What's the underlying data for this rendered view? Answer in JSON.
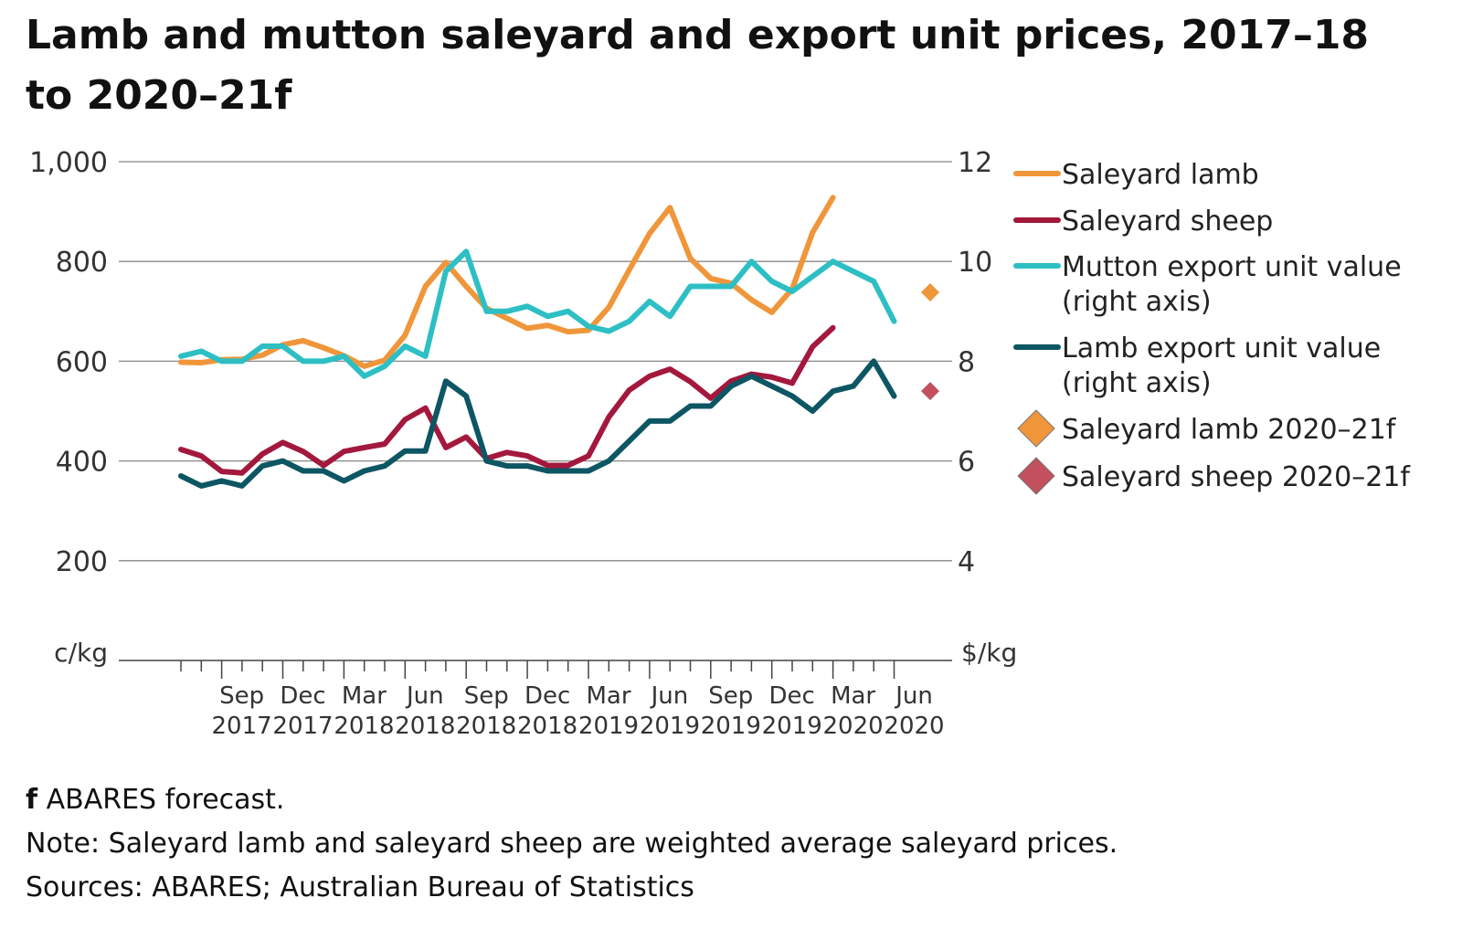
{
  "title": "Lamb and mutton saleyard and export unit prices, 2017–18 to 2020–21f",
  "notes": {
    "forecast_mark": "f",
    "forecast_text": " ABARES forecast.",
    "note": "Note: Saleyard lamb and saleyard sheep are weighted average saleyard prices.",
    "sources": "Sources: ABARES; Australian Bureau of Statistics"
  },
  "chart_data": {
    "type": "line",
    "left_axis": {
      "label": "c/kg",
      "ticks": [
        "200",
        "400",
        "600",
        "800",
        "1,000"
      ],
      "range": [
        0,
        1000
      ]
    },
    "right_axis": {
      "label": "$/kg",
      "ticks": [
        "4",
        "6",
        "8",
        "10",
        "12"
      ],
      "range": [
        2,
        12
      ]
    },
    "x_labels": [
      [
        "Sep",
        "2017"
      ],
      [
        "Dec",
        "2017"
      ],
      [
        "Mar",
        "2018"
      ],
      [
        "Jun",
        "2018"
      ],
      [
        "Sep",
        "2018"
      ],
      [
        "Dec",
        "2018"
      ],
      [
        "Mar",
        "2019"
      ],
      [
        "Jun",
        "2019"
      ],
      [
        "Sep",
        "2019"
      ],
      [
        "Dec",
        "2019"
      ],
      [
        "Mar",
        "2020"
      ],
      [
        "Jun",
        "2020"
      ]
    ],
    "months": [
      "Jul 2017",
      "Aug 2017",
      "Sep 2017",
      "Oct 2017",
      "Nov 2017",
      "Dec 2017",
      "Jan 2018",
      "Feb 2018",
      "Mar 2018",
      "Apr 2018",
      "May 2018",
      "Jun 2018",
      "Jul 2018",
      "Aug 2018",
      "Sep 2018",
      "Oct 2018",
      "Nov 2018",
      "Dec 2018",
      "Jan 2019",
      "Feb 2019",
      "Mar 2019",
      "Apr 2019",
      "May 2019",
      "Jun 2019",
      "Jul 2019",
      "Aug 2019",
      "Sep 2019",
      "Oct 2019",
      "Nov 2019",
      "Dec 2019",
      "Jan 2020",
      "Feb 2020",
      "Mar 2020",
      "Apr 2020",
      "May 2020",
      "Jun 2020"
    ],
    "grid": true,
    "legend_position": "right",
    "colors": {
      "lamb": "#f0963a",
      "sheep": "#a3183c",
      "mutton_export": "#2dbfc4",
      "lamb_export": "#0d5663",
      "grid": "#888888",
      "axis": "#444444"
    },
    "series": [
      {
        "name": "Saleyard lamb",
        "axis": "left",
        "color": "#f0963a",
        "kind": "line",
        "values": [
          598,
          597,
          603,
          604,
          612,
          633,
          641,
          627,
          611,
          590,
          602,
          652,
          750,
          798,
          750,
          706,
          686,
          666,
          672,
          659,
          662,
          708,
          783,
          856,
          908,
          806,
          766,
          756,
          723,
          698,
          745,
          858,
          928,
          null,
          null,
          null
        ]
      },
      {
        "name": "Saleyard sheep",
        "axis": "left",
        "color": "#a3183c",
        "kind": "line",
        "values": [
          423,
          410,
          379,
          376,
          414,
          437,
          419,
          391,
          419,
          427,
          434,
          483,
          506,
          427,
          448,
          405,
          417,
          410,
          391,
          391,
          410,
          488,
          542,
          570,
          584,
          559,
          526,
          560,
          574,
          568,
          556,
          629,
          667,
          null,
          null,
          null
        ]
      },
      {
        "name": "Mutton export unit value\n(right axis)",
        "axis": "right",
        "color": "#2dbfc4",
        "kind": "line",
        "values": [
          8.1,
          8.2,
          8.0,
          8.0,
          8.3,
          8.3,
          8.0,
          8.0,
          8.1,
          7.7,
          7.9,
          8.3,
          8.1,
          9.8,
          10.2,
          9.0,
          9.0,
          9.1,
          8.9,
          9.0,
          8.7,
          8.6,
          8.8,
          9.2,
          8.9,
          9.5,
          9.5,
          9.5,
          10.0,
          9.6,
          9.4,
          9.7,
          10.0,
          9.8,
          9.6,
          8.8
        ]
      },
      {
        "name": "Lamb export unit value\n(right axis)",
        "axis": "right",
        "color": "#0d5663",
        "kind": "line",
        "values": [
          5.7,
          5.5,
          5.6,
          5.5,
          5.9,
          6.0,
          5.8,
          5.8,
          5.6,
          5.8,
          5.9,
          6.2,
          6.2,
          7.6,
          7.3,
          6.0,
          5.9,
          5.9,
          5.8,
          5.8,
          5.8,
          6.0,
          6.4,
          6.8,
          6.8,
          7.1,
          7.1,
          7.5,
          7.7,
          7.5,
          7.3,
          7.0,
          7.4,
          7.5,
          8.0,
          7.3
        ]
      },
      {
        "name": "Saleyard lamb 2020–21f",
        "axis": "left",
        "color": "#f0963a",
        "kind": "diamond",
        "x_label": "2020–21",
        "values": [
          738
        ]
      },
      {
        "name": "Saleyard sheep 2020–21f",
        "axis": "left",
        "color": "#c2505e",
        "kind": "diamond",
        "x_label": "2020–21",
        "values": [
          540
        ]
      }
    ]
  }
}
